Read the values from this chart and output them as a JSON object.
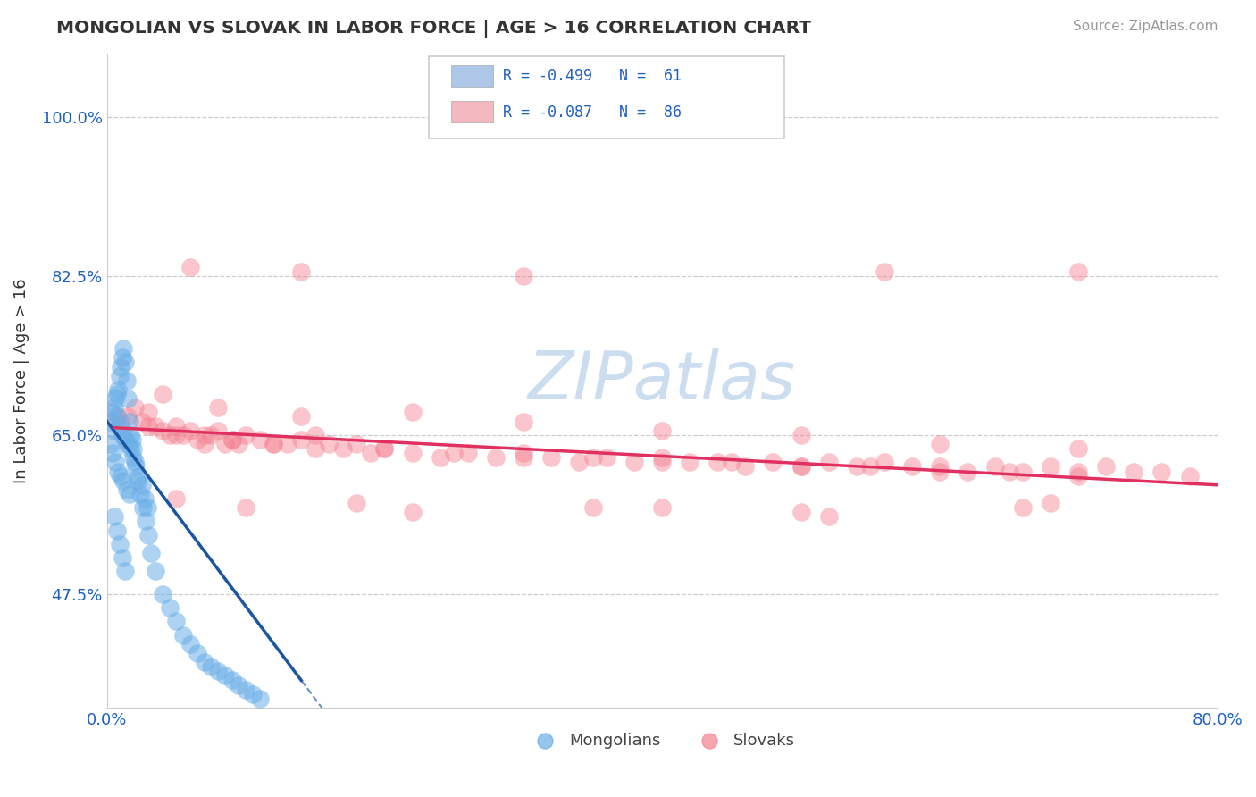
{
  "title": "MONGOLIAN VS SLOVAK IN LABOR FORCE | AGE > 16 CORRELATION CHART",
  "source": "Source: ZipAtlas.com",
  "ylabel": "In Labor Force | Age > 16",
  "xlim": [
    0.0,
    80.0
  ],
  "ylim": [
    35.0,
    107.0
  ],
  "yticks": [
    47.5,
    65.0,
    82.5,
    100.0
  ],
  "xticks": [
    0.0,
    80.0
  ],
  "mongolian_color": "#6aaee8",
  "slovak_color": "#f48090",
  "mongolian_alpha": 0.55,
  "slovak_alpha": 0.45,
  "regression_mongolian_color": "#1a55a0",
  "regression_slovak_color": "#e03060",
  "watermark": "ZIPatlas",
  "watermark_color": "#ccddf0",
  "background_color": "#ffffff",
  "grid_color": "#cccccc",
  "legend_mongolian_color": "#aec6e8",
  "legend_slovak_color": "#f4b8c1",
  "legend_text_color": "#2060c0",
  "tick_color": "#2060c0",
  "title_color": "#333333",
  "ylabel_color": "#333333",
  "mong_reg_x0": 0.0,
  "mong_reg_y0": 66.5,
  "mong_reg_x1": 14.0,
  "mong_reg_y1": 38.0,
  "mong_dash_x1": 22.0,
  "slov_reg_x0": 0.5,
  "slov_reg_y0": 65.8,
  "slov_reg_x1": 80.0,
  "slov_reg_y1": 59.5,
  "mongolian_x": [
    0.3,
    0.4,
    0.5,
    0.6,
    0.7,
    0.8,
    0.9,
    1.0,
    1.1,
    1.2,
    1.3,
    1.4,
    1.5,
    1.6,
    1.7,
    1.8,
    1.9,
    2.0,
    2.2,
    2.4,
    2.6,
    2.8,
    3.0,
    3.2,
    3.5,
    4.0,
    4.5,
    5.0,
    5.5,
    6.0,
    6.5,
    7.0,
    7.5,
    8.0,
    8.5,
    9.0,
    9.5,
    10.0,
    10.5,
    11.0,
    0.3,
    0.5,
    0.7,
    0.9,
    1.1,
    1.3,
    1.5,
    1.7,
    1.9,
    2.1,
    2.3,
    2.5,
    2.7,
    2.9,
    0.4,
    0.6,
    0.8,
    1.0,
    1.2,
    1.4,
    1.6
  ],
  "mongolian_y": [
    66.5,
    67.5,
    68.0,
    69.0,
    69.5,
    70.0,
    71.5,
    72.5,
    73.5,
    74.5,
    73.0,
    71.0,
    69.0,
    66.5,
    65.0,
    64.5,
    63.5,
    62.0,
    60.0,
    58.5,
    57.0,
    55.5,
    54.0,
    52.0,
    50.0,
    47.5,
    46.0,
    44.5,
    43.0,
    42.0,
    41.0,
    40.0,
    39.5,
    39.0,
    38.5,
    38.0,
    37.5,
    37.0,
    36.5,
    36.0,
    64.0,
    65.5,
    67.0,
    66.0,
    65.0,
    64.5,
    64.0,
    63.5,
    62.5,
    61.5,
    60.5,
    59.5,
    58.0,
    57.0,
    63.0,
    62.0,
    61.0,
    60.5,
    60.0,
    59.0,
    58.5
  ],
  "slovak_x": [
    0.8,
    1.0,
    1.5,
    2.0,
    2.5,
    3.0,
    3.5,
    4.0,
    4.5,
    5.0,
    5.5,
    6.0,
    6.5,
    7.0,
    7.5,
    8.0,
    8.5,
    9.0,
    9.5,
    10.0,
    11.0,
    12.0,
    13.0,
    14.0,
    15.0,
    16.0,
    17.0,
    18.0,
    19.0,
    20.0,
    22.0,
    24.0,
    26.0,
    28.0,
    30.0,
    32.0,
    34.0,
    36.0,
    38.0,
    40.0,
    42.0,
    44.0,
    46.0,
    48.0,
    50.0,
    52.0,
    54.0,
    56.0,
    58.0,
    60.0,
    62.0,
    64.0,
    66.0,
    68.0,
    70.0,
    72.0,
    74.0,
    76.0,
    78.0,
    3.0,
    5.0,
    7.0,
    9.0,
    12.0,
    15.0,
    20.0,
    25.0,
    30.0,
    35.0,
    40.0,
    45.0,
    50.0,
    55.0,
    60.0,
    65.0,
    70.0,
    4.0,
    8.0,
    14.0,
    22.0,
    30.0,
    40.0,
    50.0,
    60.0,
    70.0
  ],
  "slovak_y": [
    67.0,
    66.5,
    67.0,
    68.0,
    66.5,
    67.5,
    66.0,
    65.5,
    65.0,
    66.0,
    65.0,
    65.5,
    64.5,
    65.0,
    65.0,
    65.5,
    64.0,
    64.5,
    64.0,
    65.0,
    64.5,
    64.0,
    64.0,
    64.5,
    65.0,
    64.0,
    63.5,
    64.0,
    63.0,
    63.5,
    63.0,
    62.5,
    63.0,
    62.5,
    63.0,
    62.5,
    62.0,
    62.5,
    62.0,
    62.5,
    62.0,
    62.0,
    61.5,
    62.0,
    61.5,
    62.0,
    61.5,
    62.0,
    61.5,
    61.5,
    61.0,
    61.5,
    61.0,
    61.5,
    61.0,
    61.5,
    61.0,
    61.0,
    60.5,
    66.0,
    65.0,
    64.0,
    64.5,
    64.0,
    63.5,
    63.5,
    63.0,
    62.5,
    62.5,
    62.0,
    62.0,
    61.5,
    61.5,
    61.0,
    61.0,
    60.5,
    69.5,
    68.0,
    67.0,
    67.5,
    66.5,
    65.5,
    65.0,
    64.0,
    63.5
  ],
  "slovak_outlier_x": [
    6.0,
    14.0,
    30.0,
    56.0,
    70.0,
    10.0,
    22.0,
    40.0,
    52.0,
    66.0,
    5.0,
    18.0,
    35.0,
    50.0,
    68.0
  ],
  "slovak_outlier_y": [
    83.5,
    83.0,
    82.5,
    83.0,
    83.0,
    57.0,
    56.5,
    57.0,
    56.0,
    57.0,
    58.0,
    57.5,
    57.0,
    56.5,
    57.5
  ],
  "mong_extra_x": [
    0.5,
    0.7,
    0.9,
    1.1,
    1.3
  ],
  "mong_extra_y": [
    56.0,
    54.5,
    53.0,
    51.5,
    50.0
  ]
}
